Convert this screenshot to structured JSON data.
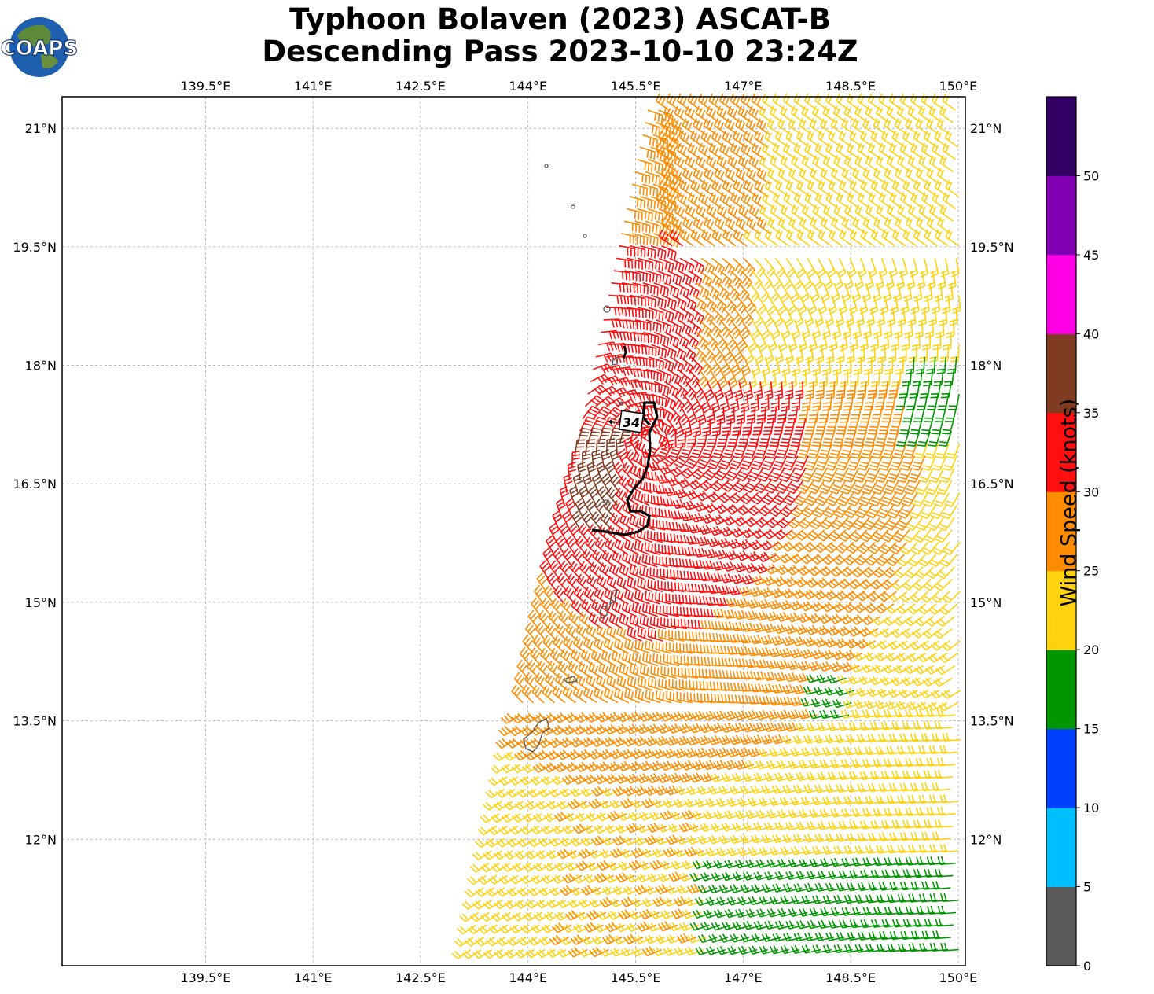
{
  "logo": {
    "text": "COAPS"
  },
  "title": {
    "line1": "Typhoon Bolaven (2023) ASCAT-B",
    "line2": "Descending Pass 2023-10-10 23:24Z"
  },
  "map": {
    "lon_range": [
      137.5,
      150.1
    ],
    "lat_range": [
      10.4,
      21.4
    ],
    "lon_ticks": [
      "139.5°E",
      "141°E",
      "142.5°E",
      "144°E",
      "145.5°E",
      "147°E",
      "148.5°E",
      "150°E"
    ],
    "lat_ticks": [
      "21°N",
      "19.5°N",
      "18°N",
      "16.5°N",
      "15°N",
      "13.5°N",
      "12°N"
    ],
    "gridlines": true,
    "contour_label": "34"
  },
  "colorbar": {
    "label": "Wind Speed (knots)",
    "ticks": [
      "0",
      "5",
      "10",
      "15",
      "20",
      "25",
      "30",
      "35",
      "40",
      "45",
      "50"
    ],
    "colors": [
      "#595959",
      "#00bfff",
      "#0040ff",
      "#009600",
      "#ffd20f",
      "#ff8c00",
      "#ff0f0f",
      "#803c23",
      "#ff00e6",
      "#8200b4",
      "#320064"
    ]
  }
}
